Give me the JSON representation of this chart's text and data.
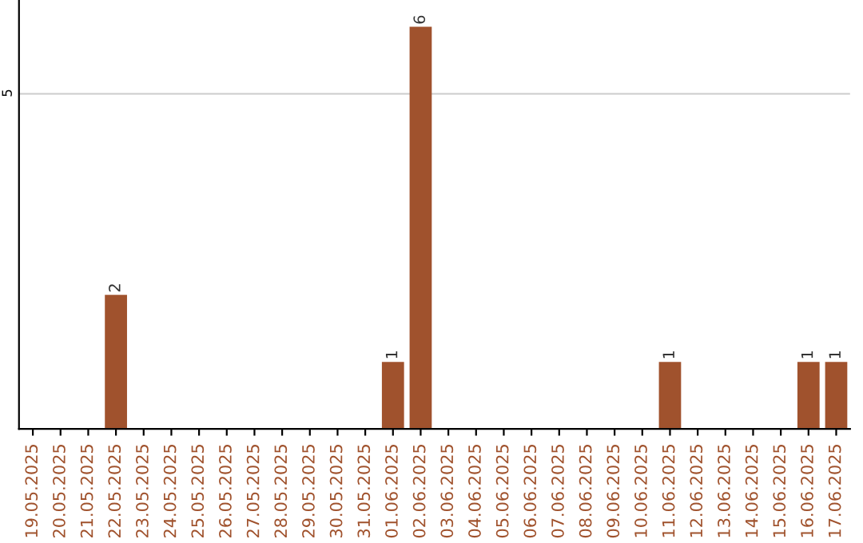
{
  "chart_data": {
    "type": "bar",
    "categories": [
      "19.05.2025",
      "20.05.2025",
      "21.05.2025",
      "22.05.2025",
      "23.05.2025",
      "24.05.2025",
      "25.05.2025",
      "26.05.2025",
      "27.05.2025",
      "28.05.2025",
      "29.05.2025",
      "30.05.2025",
      "31.05.2025",
      "01.06.2025",
      "02.06.2025",
      "03.06.2025",
      "04.06.2025",
      "05.06.2025",
      "06.06.2025",
      "07.06.2025",
      "08.06.2025",
      "09.06.2025",
      "10.06.2025",
      "11.06.2025",
      "12.06.2025",
      "13.06.2025",
      "14.06.2025",
      "15.06.2025",
      "16.06.2025",
      "17.06.2025"
    ],
    "values": [
      0,
      0,
      0,
      2,
      0,
      0,
      0,
      0,
      0,
      0,
      0,
      0,
      0,
      1,
      6,
      0,
      0,
      0,
      0,
      0,
      0,
      0,
      0,
      1,
      0,
      0,
      0,
      0,
      1,
      1
    ],
    "color": "#a0522d",
    "value_labels": [
      null,
      null,
      null,
      "2",
      null,
      null,
      null,
      null,
      null,
      null,
      null,
      null,
      null,
      "1",
      "6",
      null,
      null,
      null,
      null,
      null,
      null,
      null,
      null,
      "1",
      null,
      null,
      null,
      null,
      "1",
      "1"
    ],
    "ylim": [
      0,
      6.4
    ],
    "yticks": [
      5
    ],
    "grid": "y"
  }
}
